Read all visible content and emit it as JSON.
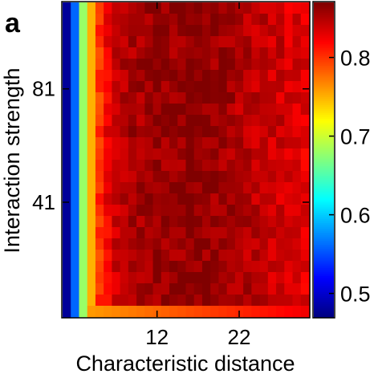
{
  "panel_label": "a",
  "chart_data": {
    "type": "heatmap",
    "xlabel": "Characteristic distance",
    "ylabel": "Interaction strength",
    "x_ticks": [
      12,
      22
    ],
    "y_ticks": [
      41,
      81
    ],
    "xlim": [
      1,
      30
    ],
    "ylim": [
      1,
      111
    ],
    "colorbar": {
      "range": [
        0.47,
        0.87
      ],
      "ticks": [
        0.5,
        0.6,
        0.7,
        0.8
      ],
      "tick_labels": [
        "0.5",
        "0.6",
        "0.7",
        "0.8"
      ],
      "colormap": "jet"
    },
    "value_profile_by_distance": {
      "x": [
        1,
        2,
        3,
        4,
        5,
        6,
        7,
        8,
        9,
        10,
        11,
        12,
        13,
        14,
        15,
        16,
        17,
        18,
        19,
        20,
        21,
        22,
        23,
        24,
        25,
        26,
        27,
        28,
        29,
        30
      ],
      "value": [
        0.48,
        0.56,
        0.68,
        0.75,
        0.8,
        0.825,
        0.84,
        0.85,
        0.855,
        0.855,
        0.86,
        0.86,
        0.86,
        0.86,
        0.86,
        0.865,
        0.865,
        0.862,
        0.86,
        0.858,
        0.855,
        0.85,
        0.85,
        0.845,
        0.845,
        0.84,
        0.84,
        0.835,
        0.835,
        0.83
      ]
    },
    "bottom_row_note": "lowest interaction-strength row drops to ~0.75-0.80 for distance >= 4"
  }
}
